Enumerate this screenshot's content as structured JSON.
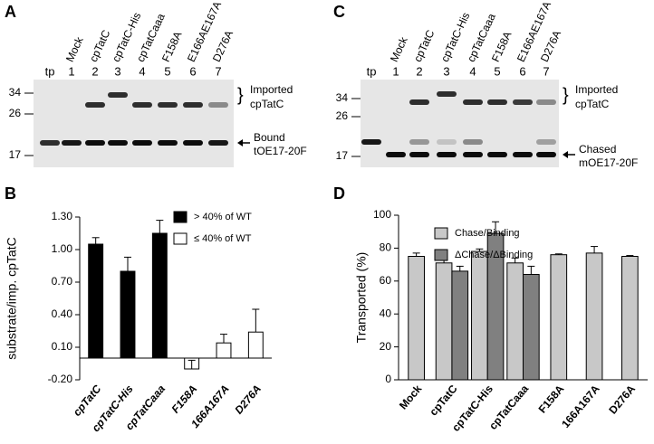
{
  "gels": [
    {
      "panel": "A",
      "top_labels": [
        "Mock",
        "cpTatC",
        "cpTatC-His",
        "cpTatCaaa",
        "F158A",
        "E166AE167A",
        "D276A"
      ],
      "lanes": [
        "tp",
        "1",
        "2",
        "3",
        "4",
        "5",
        "6",
        "7"
      ],
      "markers": [
        34,
        26,
        17
      ],
      "imported": [
        "Imported",
        "cpTatC"
      ],
      "substrate": [
        "Bound",
        "tOE17-20F"
      ]
    },
    {
      "panel": "C",
      "top_labels": [
        "Mock",
        "cpTatC",
        "cpTatC-His",
        "cpTatCaaa",
        "F158A",
        "E166AE167A",
        "D276A"
      ],
      "lanes": [
        "tp",
        "1",
        "2",
        "3",
        "4",
        "5",
        "6",
        "7"
      ],
      "markers": [
        34,
        26,
        17
      ],
      "imported": [
        "Imported",
        "cpTatC"
      ],
      "substrate": [
        "Chased",
        "mOE17-20F"
      ]
    }
  ],
  "chart_data": [
    {
      "type": "bar",
      "panel": "B",
      "y_label": "substrate/imp. cpTatC",
      "categories": [
        "cpTatC",
        "cpTatC-His",
        "cpTatCaaa",
        "F158A",
        "166A167A",
        "D276A"
      ],
      "series": [
        {
          "name": "> 40% of WT",
          "color": "#000000",
          "values": [
            1.05,
            0.8,
            1.15,
            null,
            null,
            null
          ],
          "errors": [
            0.06,
            0.13,
            0.12,
            null,
            null,
            null
          ]
        },
        {
          "name": "≤ 40% of WT",
          "color": "#ffffff",
          "values": [
            null,
            null,
            null,
            -0.1,
            0.14,
            0.24
          ],
          "errors": [
            null,
            null,
            null,
            0.08,
            0.08,
            0.21
          ]
        }
      ],
      "ylim": [
        -0.2,
        1.3
      ],
      "yticks": [
        {
          "value": -0.2,
          "label": "-0.20"
        },
        {
          "value": 0.1,
          "label": "0.10"
        },
        {
          "value": 0.4,
          "label": "0.40"
        },
        {
          "value": 0.7,
          "label": "0.70"
        },
        {
          "value": 1,
          "label": "1.00"
        },
        {
          "value": 1.3,
          "label": "1.30"
        }
      ],
      "category_style": "bold-italic"
    },
    {
      "type": "bar",
      "panel": "D",
      "y_label": "Transported (%)",
      "categories": [
        "Mock",
        "cpTatC",
        "cpTatC-His",
        "cpTatCaaa",
        "F158A",
        "166A167A",
        "D276A"
      ],
      "series": [
        {
          "name": "Chase/Binding",
          "color": "#c8c8c8",
          "values": [
            75,
            71,
            78,
            71,
            76,
            77,
            75
          ],
          "errors": [
            2,
            1.5,
            1.5,
            3,
            0.5,
            4,
            0.5
          ]
        },
        {
          "name": "ΔChase/ΔBinding",
          "color": "#808080",
          "values": [
            null,
            66,
            89,
            64,
            null,
            null,
            null
          ],
          "errors": [
            null,
            3,
            7,
            5,
            null,
            null,
            null
          ]
        }
      ],
      "ylim": [
        0,
        100
      ],
      "yticks": [
        0,
        20,
        40,
        60,
        80,
        100
      ],
      "category_style": "bold"
    }
  ]
}
